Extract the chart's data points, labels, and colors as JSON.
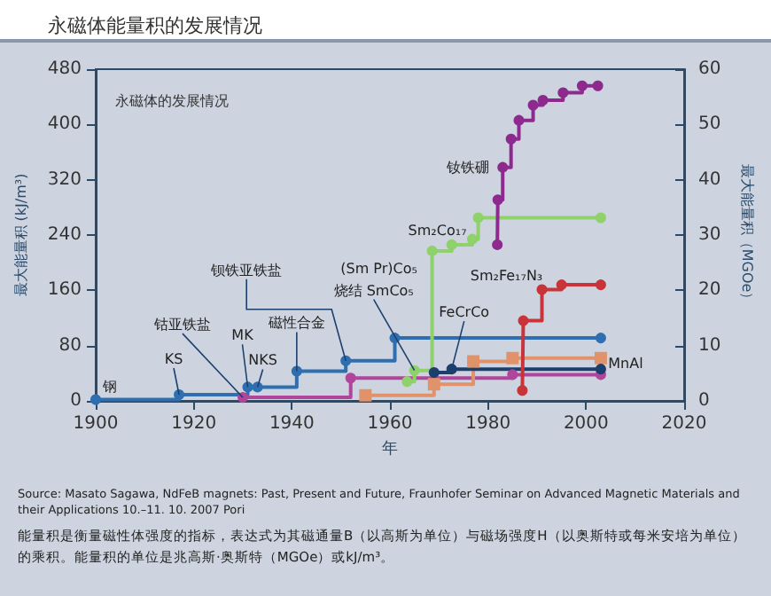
{
  "chart_data": {
    "type": "step",
    "title": "永磁体能量积的发展情况",
    "subtitle": "永磁体的发展情况",
    "xlabel": "年",
    "ylabel": "最大能量积 (kJ/m³)",
    "y2label": "最大能量积（MGOe）",
    "xlim": [
      1900,
      2020
    ],
    "xticks": [
      1900,
      1920,
      1940,
      1960,
      1980,
      2000,
      2020
    ],
    "ylim": [
      0,
      480
    ],
    "yticks": [
      0,
      80,
      160,
      240,
      320,
      400,
      480
    ],
    "y2lim": [
      0,
      60
    ],
    "y2ticks": [
      0,
      10,
      20,
      30,
      40,
      50,
      60
    ],
    "marker": "circle",
    "line_style": "solid",
    "grid": false,
    "series": [
      {
        "color": "#2f6fb0",
        "x": [
          1900,
          1917,
          1931,
          1933,
          1941,
          1951,
          1961,
          2003
        ],
        "values": [
          2,
          9,
          20,
          20,
          43,
          58,
          91,
          91
        ]
      },
      {
        "color": "#b0459c",
        "x": [
          1930,
          1952,
          1985,
          2003
        ],
        "values": [
          5,
          33,
          38,
          38
        ]
      },
      {
        "color": "#e0936b",
        "marker": "square",
        "x": [
          1955,
          1969,
          1977,
          1985,
          2003
        ],
        "values": [
          8,
          24,
          57,
          62,
          62
        ]
      },
      {
        "color": "#1d3f6e",
        "x": [
          1969,
          1972.6,
          2003
        ],
        "values": [
          41,
          46,
          46
        ]
      },
      {
        "color": "#8fd16a",
        "x": [
          1963.5,
          1965,
          1968.6,
          1972.6,
          1976.8,
          1978,
          2003
        ],
        "values": [
          28,
          44,
          217,
          226,
          234,
          265,
          265
        ]
      },
      {
        "color": "#c8343a",
        "x": [
          1987,
          1987.2,
          1991,
          1995,
          2003
        ],
        "values": [
          15,
          116,
          161,
          168,
          168
        ]
      },
      {
        "color": "#8e2a8e",
        "x": [
          1981.9,
          1982,
          1983,
          1984.7,
          1986.3,
          1989.2,
          1991.2,
          1995.3,
          1999.2,
          2002.4
        ],
        "values": [
          226,
          291,
          338,
          379,
          406,
          428,
          435,
          446,
          456,
          456
        ]
      }
    ],
    "annotations": [
      {
        "text": "钢",
        "x": 1900,
        "y": 2
      },
      {
        "text": "KS",
        "x": 1917,
        "y": 9
      },
      {
        "text": "钴亚铁盐",
        "x": 1930,
        "y": 5
      },
      {
        "text": "MK",
        "x": 1931,
        "y": 20
      },
      {
        "text": "NKS",
        "x": 1933,
        "y": 20
      },
      {
        "text": "磁性合金",
        "x": 1941,
        "y": 43
      },
      {
        "text": "钡铁亚铁盐",
        "x": 1951,
        "y": 58
      },
      {
        "text": "(Sm Pr)Co₅",
        "x": 1968.6,
        "y": 217
      },
      {
        "text": "烧结 SmCo₅",
        "x": 1965,
        "y": 44
      },
      {
        "text": "Sm₂Co₁₇",
        "x": 1978,
        "y": 265
      },
      {
        "text": "钕铁硼",
        "x": 1982,
        "y": 291
      },
      {
        "text": "Sm₂Fe₁₇N₃",
        "x": 1991,
        "y": 161
      },
      {
        "text": "FeCrCo",
        "x": 1972.6,
        "y": 46
      },
      {
        "text": "MnAl",
        "x": 2003,
        "y": 62
      },
      "Source: Masato Sagawa, NdFeB magnets: Past, Present and Future, Fraunhofer Seminar on Advanced Magnetic Materials and their Applications 10.–11. 10. 2007 Pori",
      "能量积是衡量磁性体强度的指标，表达式为其磁通量B（以高斯为单位）与磁场强度H（以奥斯特或每米安培为单位）的乘积。能量积的单位是兆高斯·奥斯特（MGOe）或kJ/m³。"
    ]
  }
}
